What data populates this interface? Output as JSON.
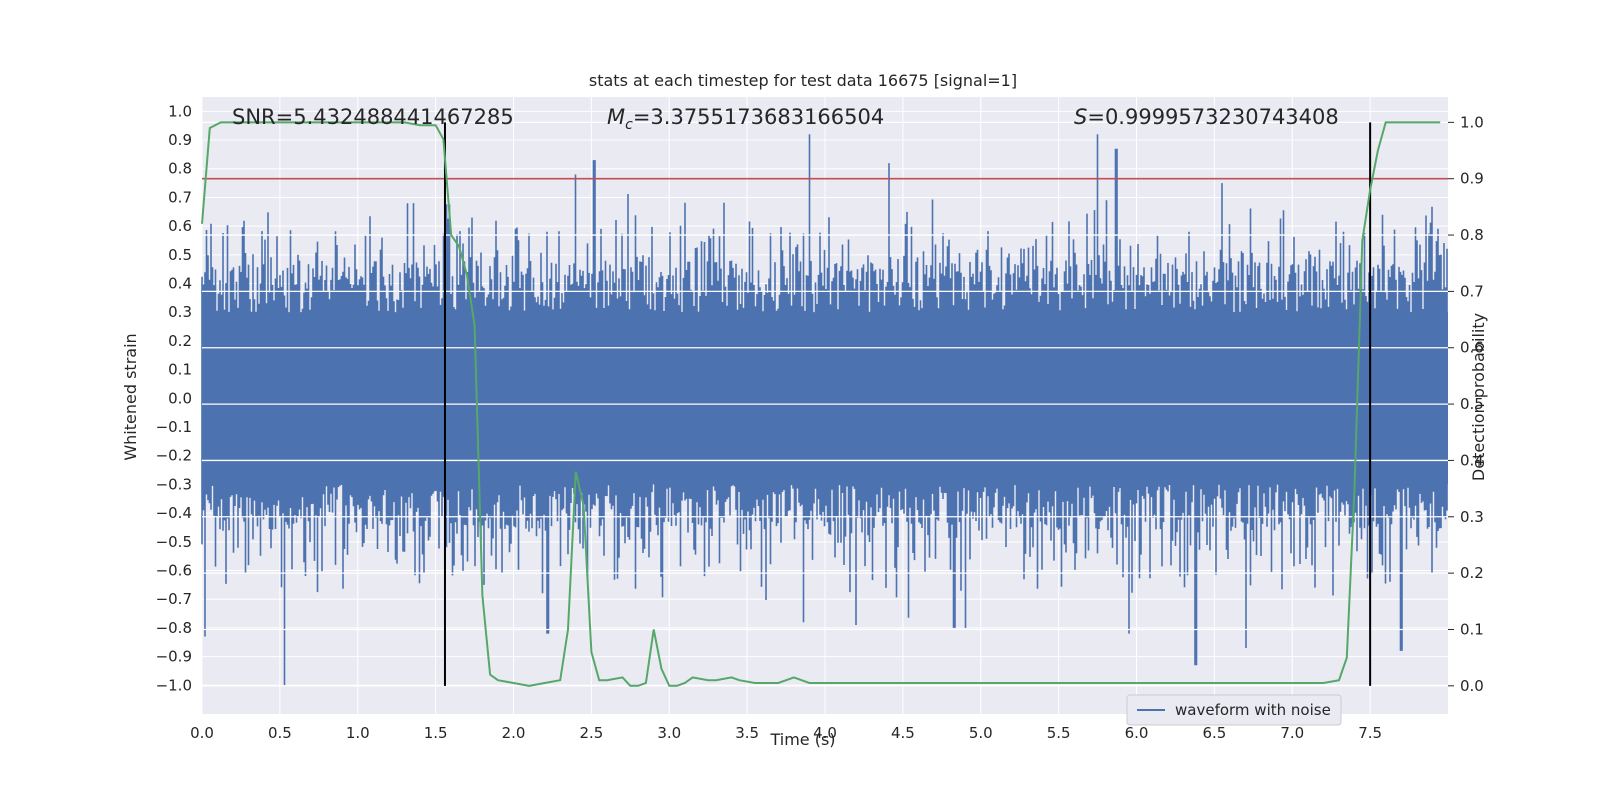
{
  "chart_data": {
    "type": "line",
    "title": "stats at each timestep for test data 16675 [signal=1]",
    "xlabel": "Time (s)",
    "ylabel": "Whitened strain",
    "y2label": "Detection probability",
    "xlim": [
      0.0,
      8.0
    ],
    "ylim": [
      -1.1,
      1.05
    ],
    "y2lim": [
      -0.05,
      1.045
    ],
    "xticks": [
      "0.0",
      "0.5",
      "1.0",
      "1.5",
      "2.0",
      "2.5",
      "3.0",
      "3.5",
      "4.0",
      "4.5",
      "5.0",
      "5.5",
      "6.0",
      "6.5",
      "7.0",
      "7.5"
    ],
    "yticks": [
      "1.0",
      "0.9",
      "0.8",
      "0.7",
      "0.6",
      "0.5",
      "0.4",
      "0.3",
      "0.2",
      "0.1",
      "0.0",
      "−0.1",
      "−0.2",
      "−0.3",
      "−0.4",
      "−0.5",
      "−0.6",
      "−0.7",
      "−0.8",
      "−0.9",
      "−1.0"
    ],
    "y2ticks": [
      "1.0",
      "0.9",
      "0.8",
      "0.7",
      "0.6",
      "0.5",
      "0.4",
      "0.3",
      "0.2",
      "0.1",
      "0.0"
    ],
    "annotations": {
      "snr": "SNR=5.432488441467285",
      "mc_symbol": "M",
      "mc_subscript": "c",
      "mc_value": "=3.3755173683166504",
      "s_symbol": "S",
      "s_value": "=0.9999573230743408"
    },
    "legend": {
      "label": "waveform with noise",
      "placement": "lower-right"
    },
    "threshold": {
      "value": 0.9,
      "axis": "right",
      "color": "#c44e52"
    },
    "vlines": [
      1.56,
      7.5
    ],
    "waveform": {
      "name": "waveform with noise",
      "color": "#4c72b0",
      "t_start": 0.0,
      "t_end": 8.0,
      "band_hi": 0.3,
      "band_lo": -0.3,
      "spikes": [
        {
          "t": 0.53,
          "v": -1.0
        },
        {
          "t": 0.02,
          "v": -0.83
        },
        {
          "t": 1.32,
          "v": 0.68
        },
        {
          "t": 2.52,
          "v": 0.83
        },
        {
          "t": 3.9,
          "v": 0.92
        },
        {
          "t": 5.75,
          "v": 0.92
        },
        {
          "t": 5.87,
          "v": 0.87
        },
        {
          "t": 6.38,
          "v": -0.93
        },
        {
          "t": 6.7,
          "v": -0.87
        },
        {
          "t": 7.7,
          "v": -0.88
        },
        {
          "t": 3.86,
          "v": -0.78
        },
        {
          "t": 4.2,
          "v": -0.79
        },
        {
          "t": 4.83,
          "v": -0.8
        },
        {
          "t": 4.9,
          "v": -0.8
        },
        {
          "t": 5.95,
          "v": -0.82
        },
        {
          "t": 2.22,
          "v": -0.82
        },
        {
          "t": 2.4,
          "v": 0.78
        },
        {
          "t": 6.55,
          "v": 0.75
        }
      ]
    },
    "probability": {
      "name": "detection probability",
      "color": "#55a868",
      "x": [
        0.0,
        0.05,
        0.12,
        0.2,
        0.5,
        1.0,
        1.3,
        1.4,
        1.5,
        1.55,
        1.6,
        1.65,
        1.7,
        1.75,
        1.8,
        1.85,
        1.9,
        2.0,
        2.1,
        2.2,
        2.3,
        2.35,
        2.4,
        2.45,
        2.5,
        2.55,
        2.6,
        2.7,
        2.75,
        2.8,
        2.85,
        2.9,
        2.95,
        3.0,
        3.05,
        3.1,
        3.15,
        3.25,
        3.3,
        3.4,
        3.45,
        3.55,
        3.7,
        3.8,
        3.9,
        4.0,
        4.2,
        4.4,
        4.5,
        4.7,
        5.0,
        5.5,
        6.0,
        6.5,
        7.0,
        7.2,
        7.3,
        7.35,
        7.4,
        7.45,
        7.5,
        7.55,
        7.6,
        7.65,
        7.75,
        7.85,
        7.95
      ],
      "y": [
        0.82,
        0.99,
        1.0,
        1.0,
        1.0,
        1.0,
        1.0,
        0.995,
        0.995,
        0.97,
        0.8,
        0.78,
        0.73,
        0.64,
        0.16,
        0.02,
        0.01,
        0.005,
        0.0,
        0.005,
        0.01,
        0.1,
        0.38,
        0.32,
        0.06,
        0.01,
        0.01,
        0.015,
        0.0,
        0.0,
        0.005,
        0.1,
        0.03,
        0.0,
        0.0,
        0.005,
        0.015,
        0.01,
        0.01,
        0.015,
        0.01,
        0.005,
        0.005,
        0.015,
        0.005,
        0.005,
        0.005,
        0.005,
        0.005,
        0.005,
        0.005,
        0.005,
        0.005,
        0.005,
        0.005,
        0.005,
        0.01,
        0.05,
        0.35,
        0.79,
        0.88,
        0.95,
        1.0,
        1.0,
        1.0,
        1.0,
        1.0
      ]
    }
  }
}
